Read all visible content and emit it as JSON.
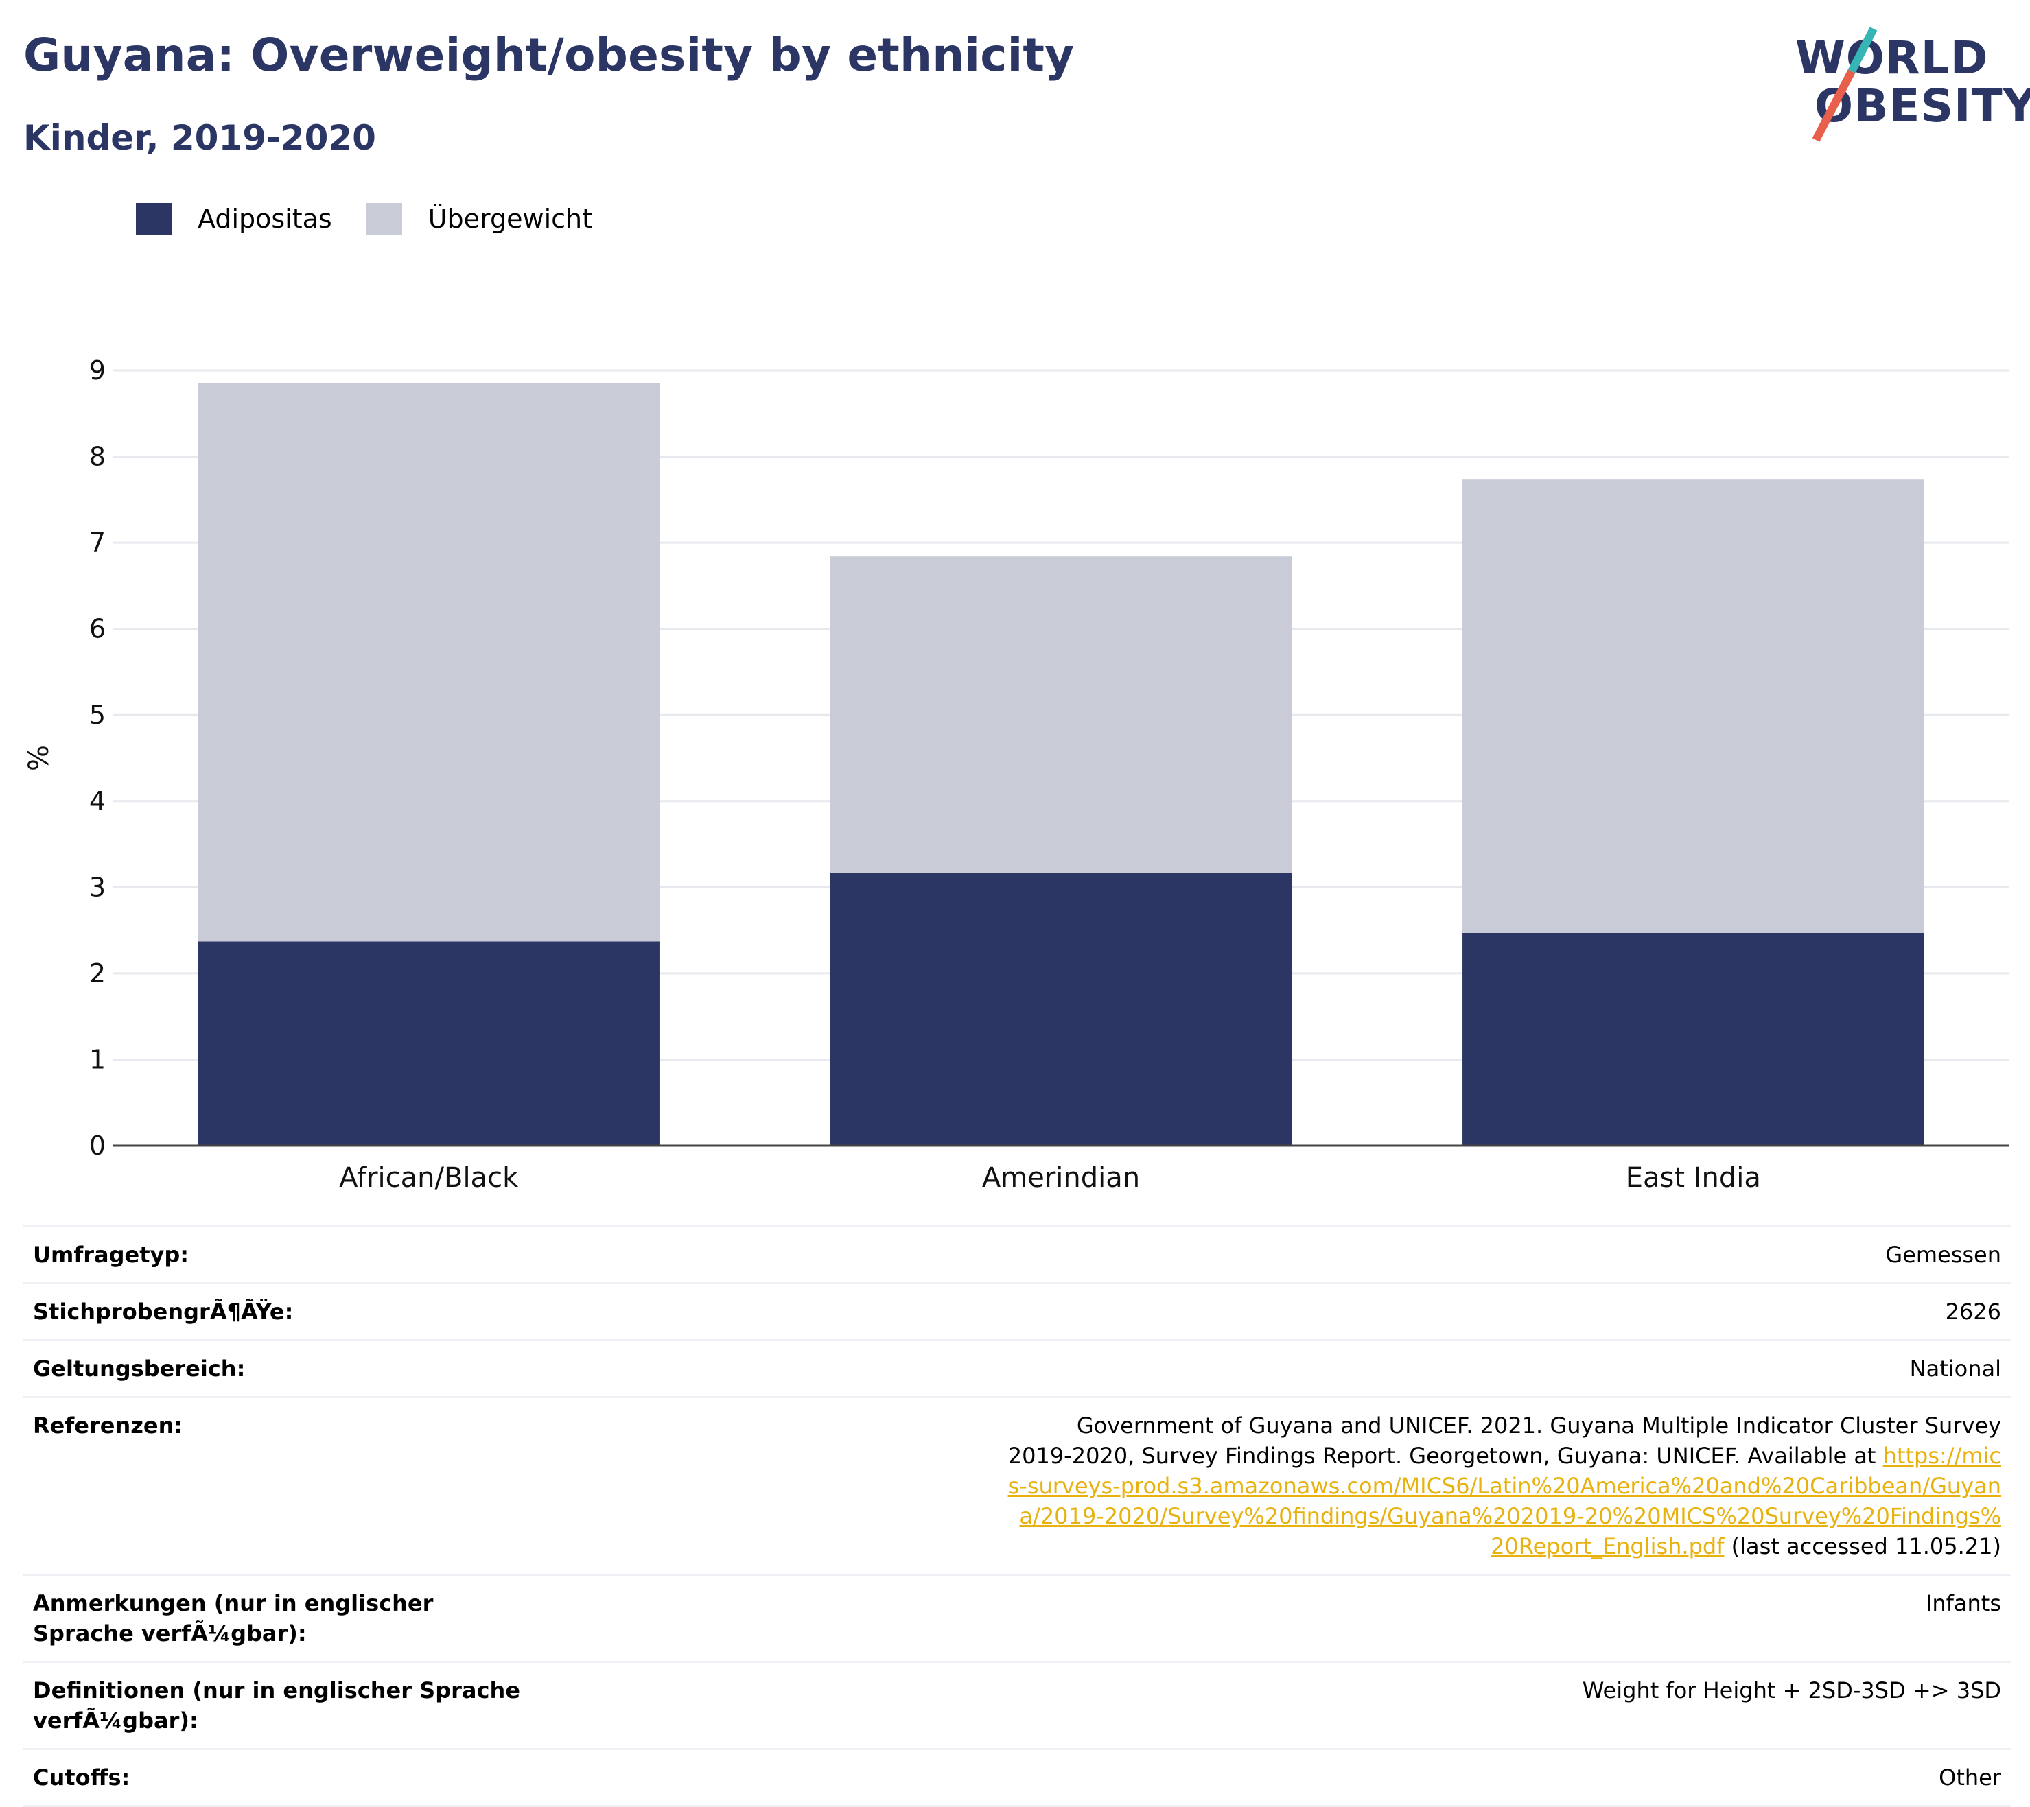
{
  "header": {
    "title": "Guyana: Overweight/obesity by ethnicity",
    "subtitle": "Kinder, 2019-2020"
  },
  "logo": {
    "line1": "WORLD",
    "line2": "OBESITY",
    "accent_teal": "#35b6b4",
    "accent_red": "#e8604c"
  },
  "legend": {
    "items": [
      {
        "label": "Adipositas",
        "color": "#2b3664"
      },
      {
        "label": "Übergewicht",
        "color": "#c9cbd6"
      }
    ]
  },
  "chart_data": {
    "type": "bar",
    "stacked": true,
    "categories": [
      "African/Black",
      "Amerindian",
      "East India"
    ],
    "series": [
      {
        "name": "Adipositas",
        "color": "#2b3664",
        "values": [
          2.37,
          3.17,
          2.47
        ]
      },
      {
        "name": "Übergewicht",
        "color": "#c9cbd6",
        "values": [
          6.48,
          3.67,
          5.27
        ]
      }
    ],
    "ylabel": "%",
    "ylim": [
      0,
      9
    ],
    "yticks": [
      "0",
      "1",
      "2",
      "3",
      "4",
      "5",
      "6",
      "7",
      "8",
      "9"
    ],
    "grid": true
  },
  "meta": {
    "rows": [
      {
        "key": "Umfragetyp:",
        "value": "Gemessen"
      },
      {
        "key": "StichprobengrÃ¶ÃŸe:",
        "value": "2626"
      },
      {
        "key": "Geltungsbereich:",
        "value": "National"
      },
      {
        "key": "Referenzen:",
        "value_pre": "Government of Guyana and UNICEF. 2021. Guyana Multiple Indicator Cluster Survey 2019-2020, Survey Findings Report. Georgetown, Guyana: UNICEF. Available at ",
        "value_link": "https://mics-surveys-prod.s3.amazonaws.com/MICS6/Latin%20America%20and%20Caribbean/Guyana/2019-2020/Survey%20findings/Guyana%202019-20%20MICS%20Survey%20Findings%20Report_English.pdf",
        "value_post": " (last accessed 11.05.21)"
      },
      {
        "key": "Anmerkungen (nur in englischer Sprache verfÃ¼gbar):",
        "value": "Infants"
      },
      {
        "key": "Definitionen (nur in englischer Sprache verfÃ¼gbar):",
        "value": "Weight for Height + 2SD-3SD +> 3SD"
      },
      {
        "key": "Cutoffs:",
        "value": "Other"
      }
    ]
  }
}
